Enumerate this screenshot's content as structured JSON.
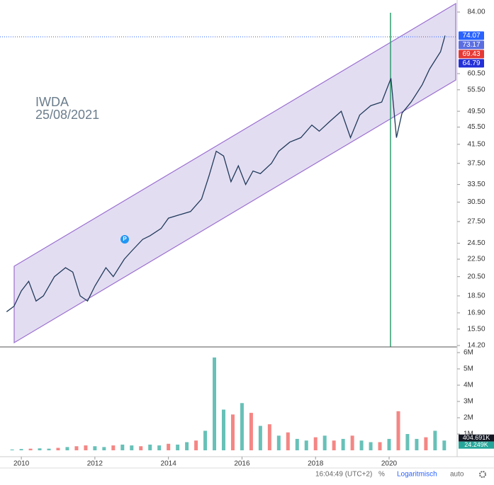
{
  "chart_data": [
    {
      "type": "line",
      "log_scale": true,
      "series": [
        {
          "name": "IWDA",
          "color": "#1f3a5a",
          "x": [
            2009.6,
            2009.8,
            2010.0,
            2010.2,
            2010.4,
            2010.6,
            2010.9,
            2011.2,
            2011.4,
            2011.6,
            2011.8,
            2012.0,
            2012.3,
            2012.5,
            2012.8,
            2013.0,
            2013.3,
            2013.5,
            2013.8,
            2014.0,
            2014.3,
            2014.6,
            2014.9,
            2015.1,
            2015.3,
            2015.5,
            2015.7,
            2015.9,
            2016.1,
            2016.3,
            2016.5,
            2016.8,
            2017.0,
            2017.3,
            2017.6,
            2017.9,
            2018.1,
            2018.4,
            2018.7,
            2018.95,
            2019.2,
            2019.5,
            2019.8,
            2020.05,
            2020.2,
            2020.35,
            2020.6,
            2020.9,
            2021.1,
            2021.4,
            2021.52
          ],
          "values": [
            17.0,
            17.5,
            19.0,
            20.0,
            18.0,
            18.5,
            20.5,
            21.5,
            21.0,
            18.5,
            18.0,
            19.5,
            21.5,
            20.5,
            22.5,
            23.5,
            25.0,
            25.5,
            26.5,
            28.0,
            28.5,
            29.0,
            31.0,
            35.0,
            40.0,
            39.0,
            34.0,
            37.0,
            33.5,
            36.0,
            35.5,
            37.5,
            40.0,
            42.0,
            43.0,
            46.0,
            44.5,
            47.0,
            49.5,
            43.0,
            48.5,
            51.0,
            52.0,
            59.0,
            43.0,
            49.0,
            52.0,
            57.0,
            62.0,
            68.0,
            74.07
          ]
        }
      ],
      "annotation": "25/08/2021",
      "marker": "P",
      "xlim": [
        2009.42,
        2021.85
      ],
      "xticks": [
        2010,
        2012,
        2014,
        2016,
        2018,
        2020
      ],
      "ylim": [
        14.2,
        84
      ],
      "yticks": [
        {
          "value": 84,
          "label": "84.00"
        },
        {
          "value": 60.5,
          "label": "60.50"
        },
        {
          "value": 55.5,
          "label": "55.50"
        },
        {
          "value": 49.5,
          "label": "49.50"
        },
        {
          "value": 45.5,
          "label": "45.50"
        },
        {
          "value": 41.5,
          "label": "41.50"
        },
        {
          "value": 37.5,
          "label": "37.50"
        },
        {
          "value": 33.5,
          "label": "33.50"
        },
        {
          "value": 30.5,
          "label": "30.50"
        },
        {
          "value": 27.5,
          "label": "27.50"
        },
        {
          "value": 24.5,
          "label": "24.50"
        },
        {
          "value": 22.5,
          "label": "22.50"
        },
        {
          "value": 20.5,
          "label": "20.50"
        },
        {
          "value": 18.5,
          "label": "18.50"
        },
        {
          "value": 16.9,
          "label": "16.90"
        },
        {
          "value": 15.5,
          "label": "15.50"
        },
        {
          "value": 14.2,
          "label": "14.20"
        }
      ],
      "price_labels": [
        {
          "value": 74.07,
          "color": "#2962ff"
        },
        {
          "value": 73.17,
          "color": "#5b6ee1"
        },
        {
          "value": 69.43,
          "color": "#e53935"
        },
        {
          "value": 64.79,
          "color": "#2430d8"
        }
      ]
    },
    {
      "type": "bar",
      "x": [
        2009.75,
        2010.0,
        2010.25,
        2010.5,
        2010.75,
        2011.0,
        2011.25,
        2011.5,
        2011.75,
        2012.0,
        2012.25,
        2012.5,
        2012.75,
        2013.0,
        2013.25,
        2013.5,
        2013.75,
        2014.0,
        2014.25,
        2014.5,
        2014.75,
        2015.0,
        2015.25,
        2015.5,
        2015.75,
        2016.0,
        2016.25,
        2016.5,
        2016.75,
        2017.0,
        2017.25,
        2017.5,
        2017.75,
        2018.0,
        2018.25,
        2018.5,
        2018.75,
        2019.0,
        2019.25,
        2019.5,
        2019.75,
        2020.0,
        2020.25,
        2020.5,
        2020.75,
        2021.0,
        2021.25,
        2021.5
      ],
      "values": [
        50000,
        80000,
        100000,
        120000,
        100000,
        150000,
        200000,
        250000,
        300000,
        250000,
        200000,
        300000,
        350000,
        300000,
        250000,
        350000,
        300000,
        400000,
        350000,
        500000,
        600000,
        1200000,
        5700000,
        2500000,
        2200000,
        2900000,
        2300000,
        1500000,
        1600000,
        900000,
        1100000,
        700000,
        600000,
        800000,
        900000,
        600000,
        700000,
        900000,
        600000,
        500000,
        500000,
        700000,
        2400000,
        1000000,
        700000,
        800000,
        1200000,
        600000
      ],
      "colors": [
        "#26a69a",
        "#26a69a",
        "#ef5350",
        "#26a69a",
        "#26a69a",
        "#ef5350",
        "#26a69a",
        "#ef5350",
        "#ef5350",
        "#26a69a",
        "#26a69a",
        "#ef5350",
        "#26a69a",
        "#26a69a",
        "#ef5350",
        "#26a69a",
        "#26a69a",
        "#ef5350",
        "#26a69a",
        "#26a69a",
        "#ef5350",
        "#26a69a",
        "#26a69a",
        "#26a69a",
        "#ef5350",
        "#26a69a",
        "#ef5350",
        "#26a69a",
        "#ef5350",
        "#26a69a",
        "#ef5350",
        "#26a69a",
        "#26a69a",
        "#ef5350",
        "#26a69a",
        "#ef5350",
        "#26a69a",
        "#ef5350",
        "#26a69a",
        "#26a69a",
        "#ef5350",
        "#26a69a",
        "#ef5350",
        "#26a69a",
        "#26a69a",
        "#ef5350",
        "#26a69a",
        "#26a69a"
      ],
      "xlim": [
        2009.42,
        2021.85
      ],
      "ylim": [
        0,
        6000000
      ],
      "yticks": [
        {
          "value": 6000000,
          "label": "6M"
        },
        {
          "value": 5000000,
          "label": "5M"
        },
        {
          "value": 4000000,
          "label": "4M"
        },
        {
          "value": 3000000,
          "label": "3M"
        },
        {
          "value": 2000000,
          "label": "2M"
        },
        {
          "value": 1000000,
          "label": "1M"
        }
      ],
      "value_labels": [
        {
          "value": 404691,
          "label": "404.691K",
          "color": "#131722"
        },
        {
          "value": 24249,
          "label": "24.249K",
          "color": "#26a69a"
        }
      ]
    }
  ],
  "toolbar": {
    "time": "16:04:49 (UTC+2)",
    "percent": "%",
    "log": "Logaritmisch",
    "auto": "auto"
  }
}
